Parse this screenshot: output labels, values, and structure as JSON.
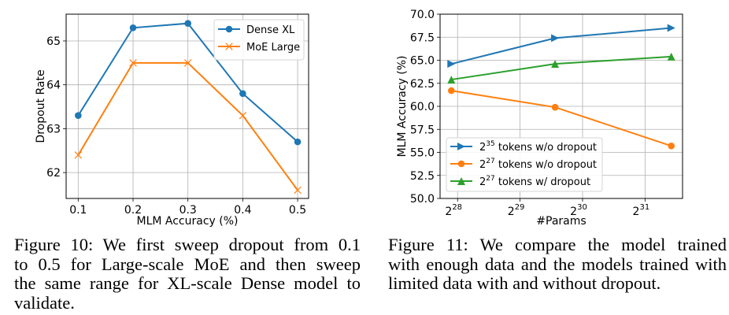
{
  "chart_data": [
    {
      "type": "line",
      "xlabel": "MLM Accuracy (%)",
      "ylabel": "Dropout Rate",
      "x": [
        0.1,
        0.2,
        0.3,
        0.4,
        0.5
      ],
      "xticks": [
        0.1,
        0.2,
        0.3,
        0.4,
        0.5
      ],
      "xtick_labels": [
        "0.1",
        "0.2",
        "0.3",
        "0.4",
        "0.5"
      ],
      "yticks": [
        62,
        63,
        64,
        65
      ],
      "ytick_labels": [
        "62",
        "63",
        "64",
        "65"
      ],
      "xlim": [
        0.078,
        0.52
      ],
      "ylim": [
        61.41,
        65.61
      ],
      "grid": true,
      "legend_position": "top-right",
      "series": [
        {
          "name": "Dense XL",
          "color": "#1f77b4",
          "marker": "circle",
          "values": [
            63.3,
            65.3,
            65.4,
            63.8,
            62.7
          ]
        },
        {
          "name": "MoE Large",
          "color": "#ff7f0e",
          "marker": "x",
          "values": [
            62.4,
            64.5,
            64.5,
            63.3,
            61.6
          ]
        }
      ]
    },
    {
      "type": "line",
      "xlabel": "#Params",
      "ylabel": "MLM Accuracy (%)",
      "x_scale": "log2",
      "x_log2": [
        27.9,
        29.56,
        31.42
      ],
      "xticks_log2": [
        28,
        29,
        30,
        31
      ],
      "xtick_labels": [
        {
          "base": "2",
          "exp": "28"
        },
        {
          "base": "2",
          "exp": "29"
        },
        {
          "base": "2",
          "exp": "30"
        },
        {
          "base": "2",
          "exp": "31"
        }
      ],
      "yticks": [
        50.0,
        52.5,
        55.0,
        57.5,
        60.0,
        62.5,
        65.0,
        67.5,
        70.0
      ],
      "ytick_labels": [
        "50.0",
        "52.5",
        "55.0",
        "57.5",
        "60.0",
        "62.5",
        "65.0",
        "67.5",
        "70.0"
      ],
      "xlim_log2": [
        27.72,
        31.6
      ],
      "ylim": [
        50.0,
        70.0
      ],
      "grid": true,
      "legend_position": "lower-left",
      "series": [
        {
          "name": "2^35 tokens w/o dropout",
          "label_base": "2",
          "label_exp": "35",
          "label_rest": " tokens w/o dropout",
          "color": "#1f77b4",
          "marker": "triangle-right",
          "values": [
            64.6,
            67.4,
            68.5
          ]
        },
        {
          "name": "2^27 tokens w/o dropout",
          "label_base": "2",
          "label_exp": "27",
          "label_rest": " tokens w/o dropout",
          "color": "#ff7f0e",
          "marker": "circle",
          "values": [
            61.7,
            59.9,
            55.7
          ]
        },
        {
          "name": "2^27 tokens w/ dropout",
          "label_base": "2",
          "label_exp": "27",
          "label_rest": " tokens w/ dropout",
          "color": "#2ca02c",
          "marker": "triangle-up",
          "values": [
            62.9,
            64.6,
            65.4
          ]
        }
      ]
    }
  ],
  "captions": {
    "left": {
      "lines": [
        "Figure 10: We first sweep dropout from 0.1",
        "to 0.5 for Large-scale MoE and then sweep",
        "the same range for XL-scale Dense model to",
        "validate."
      ]
    },
    "right": {
      "lines": [
        "Figure 11: We compare the model trained",
        "with enough data and the models trained with",
        "limited data with and without dropout."
      ]
    }
  }
}
